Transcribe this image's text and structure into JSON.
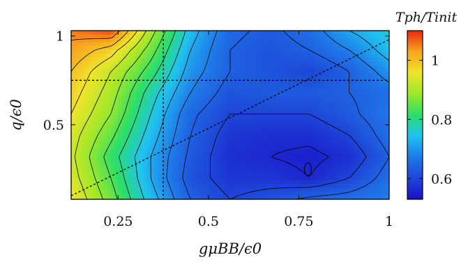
{
  "chart_data": {
    "type": "heatmap",
    "title": "",
    "xlabel": "gμBB/ϵ0",
    "ylabel": "q/ϵ0",
    "colorbar_label": "Tph/Tinit",
    "xlim": [
      0.12,
      1.0
    ],
    "ylim": [
      0.08,
      1.03
    ],
    "zlim": [
      0.53,
      1.1
    ],
    "x_ticks": [
      "0.25",
      "0.5",
      "0.75",
      "1"
    ],
    "y_ticks": [
      "0.5",
      "1"
    ],
    "colorbar_ticks": [
      "0.6",
      "0.8",
      "1"
    ],
    "colormap": [
      "#1a10c8",
      "#1e46d8",
      "#1f78e8",
      "#20c2f0",
      "#2adf6a",
      "#9be82a",
      "#f0e52a",
      "#f8a51f",
      "#e82810"
    ],
    "x": [
      0.12,
      0.23,
      0.34,
      0.45,
      0.56,
      0.67,
      0.78,
      0.89,
      1.0
    ],
    "y": [
      0.08,
      0.2,
      0.32,
      0.44,
      0.56,
      0.68,
      0.8,
      0.92,
      1.03
    ],
    "z": [
      [
        0.96,
        0.86,
        0.74,
        0.64,
        0.6,
        0.62,
        0.65,
        0.66,
        0.68
      ],
      [
        0.94,
        0.84,
        0.72,
        0.62,
        0.58,
        0.58,
        0.56,
        0.6,
        0.66
      ],
      [
        0.93,
        0.82,
        0.72,
        0.63,
        0.57,
        0.56,
        0.55,
        0.57,
        0.64
      ],
      [
        0.94,
        0.85,
        0.74,
        0.64,
        0.58,
        0.57,
        0.57,
        0.6,
        0.66
      ],
      [
        0.96,
        0.88,
        0.76,
        0.65,
        0.6,
        0.6,
        0.6,
        0.63,
        0.67
      ],
      [
        0.98,
        0.9,
        0.78,
        0.68,
        0.62,
        0.63,
        0.63,
        0.64,
        0.66
      ],
      [
        1.0,
        0.92,
        0.82,
        0.7,
        0.64,
        0.62,
        0.6,
        0.64,
        0.7
      ],
      [
        1.03,
        0.98,
        0.86,
        0.72,
        0.64,
        0.62,
        0.64,
        0.68,
        0.74
      ],
      [
        1.05,
        1.08,
        0.9,
        0.74,
        0.65,
        0.63,
        0.66,
        0.72,
        0.76
      ]
    ],
    "minimum_marker": {
      "x": 0.775,
      "y": 0.25
    },
    "guide_lines": [
      {
        "name": "vertical",
        "x": 0.375,
        "style": "dotted"
      },
      {
        "name": "horizontal",
        "y": 0.75,
        "style": "dotted"
      },
      {
        "name": "diagonal",
        "x": [
          0.12,
          1.0
        ],
        "y": [
          0.1,
          0.98
        ],
        "style": "dotted"
      }
    ],
    "grid": false,
    "legend": "colorbar-right"
  }
}
